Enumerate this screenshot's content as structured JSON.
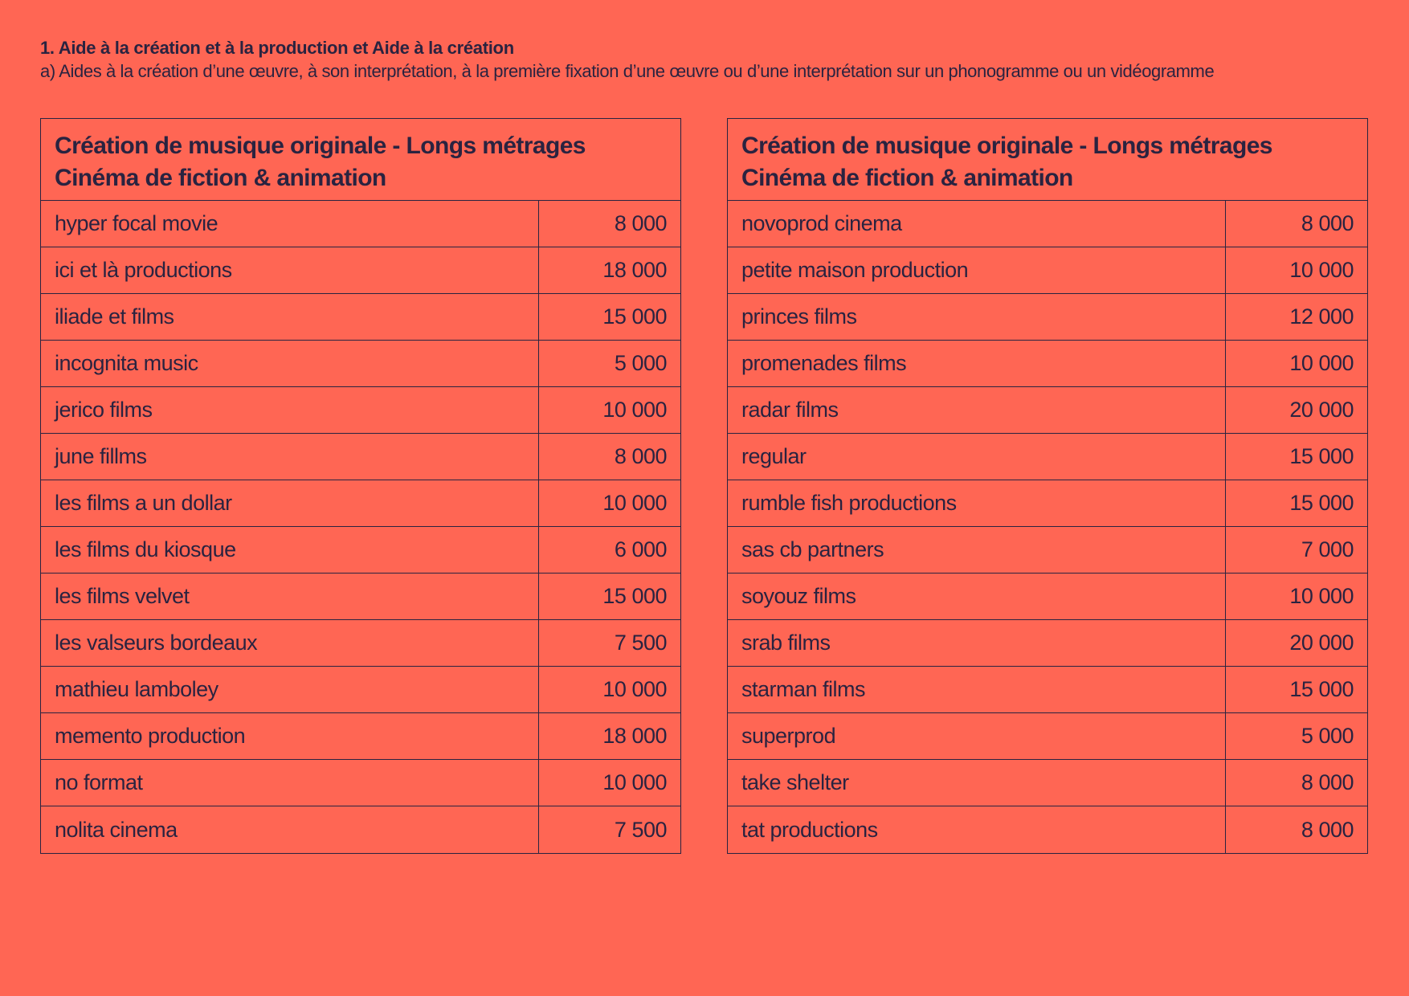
{
  "section": {
    "title": "1. Aide à la création et à la production et Aide à la création",
    "subtitle": "a) Aides à la création d’une œuvre, à son interprétation, à la première fixation d’une œuvre ou d’une interprétation sur un phonogramme ou un vidéogramme"
  },
  "tables": [
    {
      "title_line1": "Création de musique originale - Longs métrages",
      "title_line2": "Cinéma de fiction & animation",
      "rows": [
        {
          "name": "hyper focal movie",
          "amount": "8 000"
        },
        {
          "name": "ici et là productions",
          "amount": "18 000"
        },
        {
          "name": "iliade et films",
          "amount": "15 000"
        },
        {
          "name": "incognita music",
          "amount": "5 000"
        },
        {
          "name": "jerico films",
          "amount": "10 000"
        },
        {
          "name": "june fillms",
          "amount": "8 000"
        },
        {
          "name": "les films a un dollar",
          "amount": "10 000"
        },
        {
          "name": "les films du kiosque",
          "amount": "6 000"
        },
        {
          "name": "les films velvet",
          "amount": "15 000"
        },
        {
          "name": "les valseurs bordeaux",
          "amount": "7 500"
        },
        {
          "name": "mathieu lamboley",
          "amount": "10 000"
        },
        {
          "name": "memento production",
          "amount": "18 000"
        },
        {
          "name": "no format",
          "amount": "10 000"
        },
        {
          "name": "nolita cinema",
          "amount": "7 500"
        }
      ]
    },
    {
      "title_line1": "Création de musique originale - Longs métrages",
      "title_line2": "Cinéma de fiction & animation",
      "rows": [
        {
          "name": "novoprod cinema",
          "amount": "8 000"
        },
        {
          "name": "petite maison production",
          "amount": "10 000"
        },
        {
          "name": "princes films",
          "amount": "12 000"
        },
        {
          "name": "promenades films",
          "amount": "10 000"
        },
        {
          "name": "radar films",
          "amount": "20 000"
        },
        {
          "name": "regular",
          "amount": "15 000"
        },
        {
          "name": "rumble fish productions",
          "amount": "15 000"
        },
        {
          "name": "sas cb partners",
          "amount": "7 000"
        },
        {
          "name": "soyouz films",
          "amount": "10 000"
        },
        {
          "name": "srab films",
          "amount": "20 000"
        },
        {
          "name": "starman films",
          "amount": "15 000"
        },
        {
          "name": "superprod",
          "amount": "5 000"
        },
        {
          "name": "take shelter",
          "amount": "8 000"
        },
        {
          "name": "tat productions",
          "amount": "8 000"
        }
      ]
    }
  ]
}
